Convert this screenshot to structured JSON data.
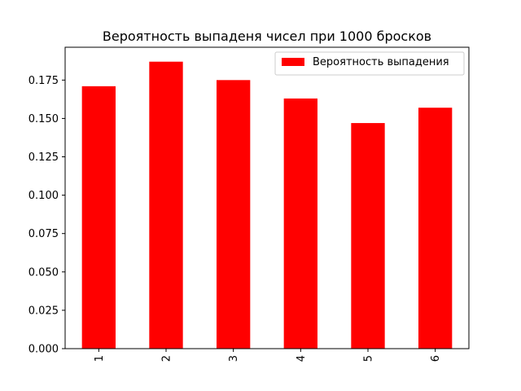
{
  "chart_data": {
    "type": "bar",
    "title": "Вероятность выпаденя чисел при 1000 бросков",
    "xlabel": "",
    "ylabel": "",
    "categories": [
      "1",
      "2",
      "3",
      "4",
      "5",
      "6"
    ],
    "series": [
      {
        "name": "Вероятность выпадения",
        "color": "#ff0000",
        "values": [
          0.171,
          0.187,
          0.175,
          0.163,
          0.147,
          0.157
        ]
      }
    ],
    "ylim": [
      0,
      0.1964
    ],
    "yticks": [
      "0.000",
      "0.025",
      "0.050",
      "0.075",
      "0.100",
      "0.125",
      "0.150",
      "0.175"
    ],
    "ytick_values": [
      0,
      0.025,
      0.05,
      0.075,
      0.1,
      0.125,
      0.15,
      0.175
    ],
    "x_tick_rotation": "vertical",
    "grid": false,
    "legend_position": "top-right"
  }
}
